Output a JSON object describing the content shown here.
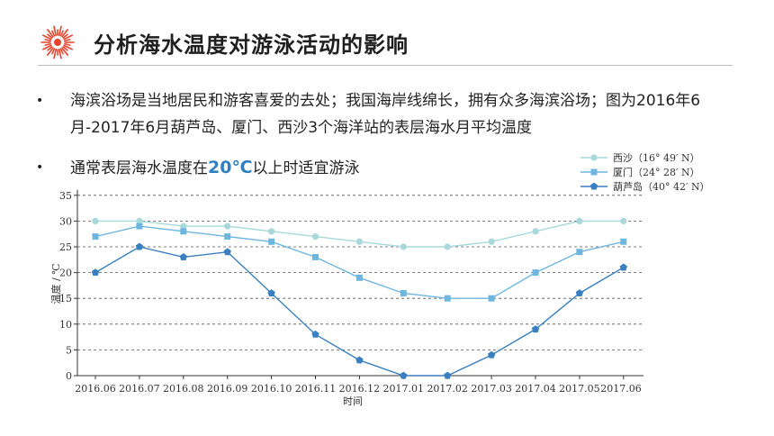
{
  "page": {
    "title": "分析海水温度对游泳活动的影响",
    "bullet1": "海滨浴场是当地居民和游客喜爱的去处；我国海岸线绵长，拥有众多海滨浴场；图为2016年6月-2017年6月葫芦岛、厦门、西沙3个海洋站的表层海水月平均温度",
    "bullet2_before": "通常表层海水温度在",
    "bullet2_highlight": "20℃",
    "bullet2_after": "以上时适宜游泳",
    "bullet_glyph": "•"
  },
  "colors": {
    "accent_red": "#e8412c",
    "xisha": "#a9d8da",
    "xiamen": "#6fb6df",
    "huludao": "#3a7fbf",
    "highlight": "#2f7fc1"
  },
  "chart_data": {
    "type": "line",
    "categories": [
      "2016.06",
      "2016.07",
      "2016.08",
      "2016.09",
      "2016.10",
      "2016.11",
      "2016.12",
      "2017.01",
      "2017.02",
      "2017.03",
      "2017.04",
      "2017.05",
      "2017.06"
    ],
    "series": [
      {
        "name": "西沙（16° 49′ N）",
        "values": [
          30,
          30,
          29,
          29,
          28,
          27,
          26,
          25,
          25,
          26,
          28,
          30,
          30
        ],
        "marker": "circle"
      },
      {
        "name": "厦门（24° 28′ N）",
        "values": [
          27,
          29,
          28,
          27,
          26,
          23,
          19,
          16,
          15,
          15,
          20,
          24,
          26
        ],
        "marker": "square"
      },
      {
        "name": "葫芦岛（40° 42′ N）",
        "values": [
          20,
          25,
          23,
          24,
          16,
          8,
          3,
          0,
          0,
          4,
          9,
          16,
          21
        ],
        "marker": "pentagon"
      }
    ],
    "xlabel": "时间",
    "ylabel": "温度 / ℃",
    "ylim": [
      0,
      35
    ],
    "yticks": [
      0,
      5,
      10,
      15,
      20,
      25,
      30,
      35
    ],
    "grid": "horizontal-dashed",
    "legend": "top-right"
  }
}
